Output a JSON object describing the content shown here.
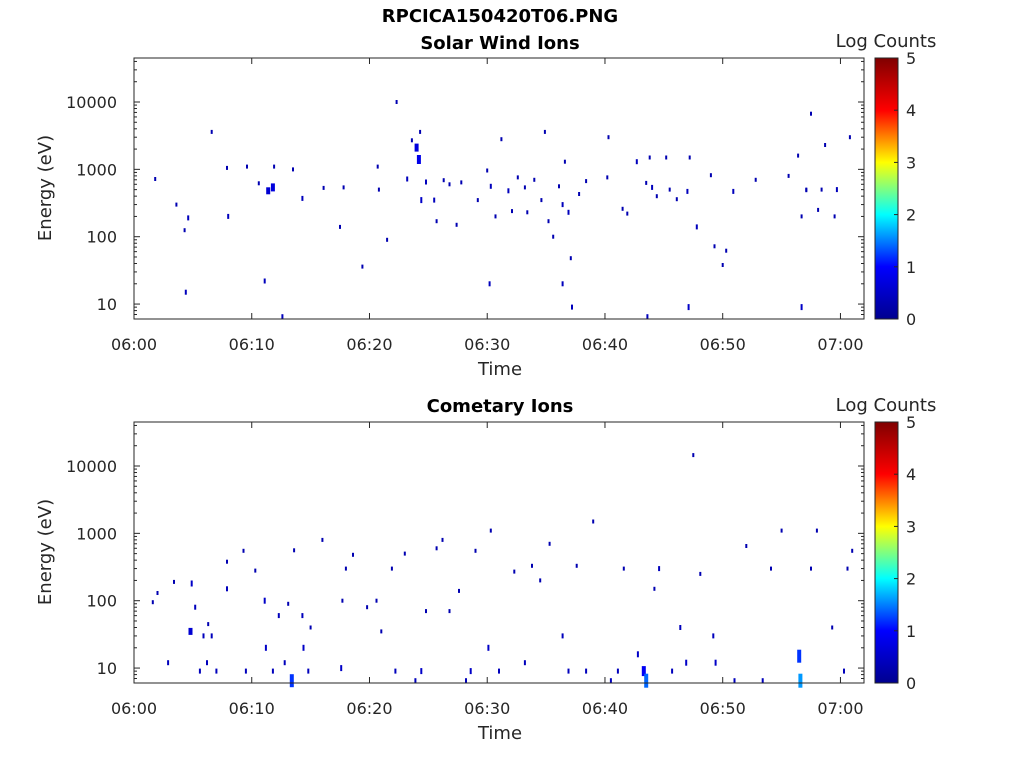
{
  "title": "RPCICA150420T06.PNG",
  "colormap": [
    "#00008f",
    "#0000ff",
    "#00ffff",
    "#ffff00",
    "#ff0000",
    "#800000"
  ],
  "chart_data": [
    {
      "type": "heatmap",
      "title": "Solar Wind Ions",
      "xlabel": "Time",
      "ylabel": "Energy (eV)",
      "colorbar_label": "Log Counts",
      "x_ticks": [
        "06:00",
        "06:10",
        "06:20",
        "06:30",
        "06:40",
        "06:50",
        "07:00"
      ],
      "xlim_minutes": [
        0,
        62
      ],
      "y_scale": "log",
      "y_ticks": [
        "10",
        "100",
        "1000",
        "10000"
      ],
      "ylim": [
        6,
        45000
      ],
      "clim": [
        0,
        5
      ],
      "colorbar_ticks": [
        "0",
        "1",
        "2",
        "3",
        "4",
        "5"
      ],
      "points": [
        {
          "t": 4.4,
          "e": 15,
          "c": 0.4
        },
        {
          "t": 11.1,
          "e": 22,
          "c": 0.4
        },
        {
          "t": 12.6,
          "e": 6.5,
          "c": 0.4
        },
        {
          "t": 30.2,
          "e": 20,
          "c": 0.4
        },
        {
          "t": 36.4,
          "e": 20,
          "c": 0.4
        },
        {
          "t": 37.2,
          "e": 9,
          "c": 0.4
        },
        {
          "t": 43.6,
          "e": 6.5,
          "c": 0.4
        },
        {
          "t": 47.1,
          "e": 9,
          "c": 0.5
        },
        {
          "t": 56.7,
          "e": 9,
          "c": 0.5
        },
        {
          "t": 1.8,
          "e": 720,
          "c": 0.3
        },
        {
          "t": 3.6,
          "e": 300,
          "c": 0.3
        },
        {
          "t": 4.6,
          "e": 190,
          "c": 0.4
        },
        {
          "t": 4.3,
          "e": 125,
          "c": 0.3
        },
        {
          "t": 6.6,
          "e": 3600,
          "c": 0.3
        },
        {
          "t": 7.9,
          "e": 1050,
          "c": 0.3
        },
        {
          "t": 8.0,
          "e": 200,
          "c": 0.4
        },
        {
          "t": 9.6,
          "e": 1100,
          "c": 0.3
        },
        {
          "t": 10.6,
          "e": 620,
          "c": 0.3
        },
        {
          "t": 11.4,
          "e": 480,
          "c": 0.6
        },
        {
          "t": 11.8,
          "e": 540,
          "c": 0.7
        },
        {
          "t": 11.9,
          "e": 1100,
          "c": 0.3
        },
        {
          "t": 13.5,
          "e": 1000,
          "c": 0.3
        },
        {
          "t": 14.3,
          "e": 370,
          "c": 0.4
        },
        {
          "t": 16.1,
          "e": 530,
          "c": 0.3
        },
        {
          "t": 17.5,
          "e": 140,
          "c": 0.3
        },
        {
          "t": 17.8,
          "e": 540,
          "c": 0.3
        },
        {
          "t": 19.4,
          "e": 36,
          "c": 0.3
        },
        {
          "t": 20.7,
          "e": 1100,
          "c": 0.3
        },
        {
          "t": 20.8,
          "e": 500,
          "c": 0.3
        },
        {
          "t": 21.5,
          "e": 90,
          "c": 0.3
        },
        {
          "t": 22.3,
          "e": 10000,
          "c": 0.3
        },
        {
          "t": 23.2,
          "e": 720,
          "c": 0.4
        },
        {
          "t": 23.6,
          "e": 2700,
          "c": 0.3
        },
        {
          "t": 24.0,
          "e": 2100,
          "c": 0.7
        },
        {
          "t": 24.2,
          "e": 1400,
          "c": 0.8
        },
        {
          "t": 24.3,
          "e": 3600,
          "c": 0.3
        },
        {
          "t": 24.4,
          "e": 350,
          "c": 0.5
        },
        {
          "t": 24.8,
          "e": 650,
          "c": 0.4
        },
        {
          "t": 25.5,
          "e": 350,
          "c": 0.4
        },
        {
          "t": 25.7,
          "e": 170,
          "c": 0.3
        },
        {
          "t": 26.3,
          "e": 690,
          "c": 0.3
        },
        {
          "t": 26.8,
          "e": 600,
          "c": 0.3
        },
        {
          "t": 27.4,
          "e": 150,
          "c": 0.3
        },
        {
          "t": 27.8,
          "e": 640,
          "c": 0.3
        },
        {
          "t": 29.2,
          "e": 350,
          "c": 0.3
        },
        {
          "t": 30.0,
          "e": 960,
          "c": 0.3
        },
        {
          "t": 30.3,
          "e": 560,
          "c": 0.4
        },
        {
          "t": 30.7,
          "e": 200,
          "c": 0.3
        },
        {
          "t": 31.2,
          "e": 2800,
          "c": 0.3
        },
        {
          "t": 31.8,
          "e": 480,
          "c": 0.4
        },
        {
          "t": 32.1,
          "e": 240,
          "c": 0.3
        },
        {
          "t": 32.6,
          "e": 760,
          "c": 0.3
        },
        {
          "t": 33.2,
          "e": 540,
          "c": 0.3
        },
        {
          "t": 33.4,
          "e": 230,
          "c": 0.3
        },
        {
          "t": 34.0,
          "e": 700,
          "c": 0.3
        },
        {
          "t": 34.6,
          "e": 350,
          "c": 0.3
        },
        {
          "t": 34.9,
          "e": 3600,
          "c": 0.3
        },
        {
          "t": 35.2,
          "e": 170,
          "c": 0.3
        },
        {
          "t": 35.6,
          "e": 100,
          "c": 0.3
        },
        {
          "t": 36.1,
          "e": 560,
          "c": 0.3
        },
        {
          "t": 36.4,
          "e": 300,
          "c": 0.4
        },
        {
          "t": 36.6,
          "e": 1300,
          "c": 0.3
        },
        {
          "t": 36.9,
          "e": 230,
          "c": 0.4
        },
        {
          "t": 37.1,
          "e": 48,
          "c": 0.3
        },
        {
          "t": 37.8,
          "e": 430,
          "c": 0.3
        },
        {
          "t": 38.4,
          "e": 670,
          "c": 0.3
        },
        {
          "t": 40.2,
          "e": 760,
          "c": 0.3
        },
        {
          "t": 40.3,
          "e": 3000,
          "c": 0.3
        },
        {
          "t": 41.5,
          "e": 260,
          "c": 0.3
        },
        {
          "t": 41.9,
          "e": 220,
          "c": 0.3
        },
        {
          "t": 42.7,
          "e": 1300,
          "c": 0.4
        },
        {
          "t": 43.5,
          "e": 630,
          "c": 0.3
        },
        {
          "t": 43.8,
          "e": 1500,
          "c": 0.3
        },
        {
          "t": 44.0,
          "e": 540,
          "c": 0.4
        },
        {
          "t": 44.4,
          "e": 400,
          "c": 0.3
        },
        {
          "t": 45.2,
          "e": 1500,
          "c": 0.3
        },
        {
          "t": 45.5,
          "e": 500,
          "c": 0.3
        },
        {
          "t": 46.1,
          "e": 360,
          "c": 0.3
        },
        {
          "t": 47.0,
          "e": 470,
          "c": 0.4
        },
        {
          "t": 47.2,
          "e": 1500,
          "c": 0.3
        },
        {
          "t": 47.8,
          "e": 140,
          "c": 0.4
        },
        {
          "t": 49.0,
          "e": 820,
          "c": 0.3
        },
        {
          "t": 49.3,
          "e": 72,
          "c": 0.3
        },
        {
          "t": 50.3,
          "e": 62,
          "c": 0.3
        },
        {
          "t": 50.0,
          "e": 38,
          "c": 0.3
        },
        {
          "t": 50.9,
          "e": 470,
          "c": 0.4
        },
        {
          "t": 52.8,
          "e": 700,
          "c": 0.3
        },
        {
          "t": 55.6,
          "e": 800,
          "c": 0.3
        },
        {
          "t": 56.4,
          "e": 1600,
          "c": 0.3
        },
        {
          "t": 56.7,
          "e": 200,
          "c": 0.3
        },
        {
          "t": 57.1,
          "e": 490,
          "c": 0.3
        },
        {
          "t": 57.5,
          "e": 6700,
          "c": 0.3
        },
        {
          "t": 58.1,
          "e": 250,
          "c": 0.3
        },
        {
          "t": 58.4,
          "e": 500,
          "c": 0.3
        },
        {
          "t": 58.7,
          "e": 2300,
          "c": 0.3
        },
        {
          "t": 59.5,
          "e": 200,
          "c": 0.3
        },
        {
          "t": 59.7,
          "e": 500,
          "c": 0.4
        },
        {
          "t": 60.8,
          "e": 3000,
          "c": 0.3
        },
        {
          "t": 57.1,
          "e": 500,
          "c": 0.3
        }
      ]
    },
    {
      "type": "heatmap",
      "title": "Cometary Ions",
      "xlabel": "Time",
      "ylabel": "Energy (eV)",
      "colorbar_label": "Log Counts",
      "x_ticks": [
        "06:00",
        "06:10",
        "06:20",
        "06:30",
        "06:40",
        "06:50",
        "07:00"
      ],
      "xlim_minutes": [
        0,
        62
      ],
      "y_scale": "log",
      "y_ticks": [
        "10",
        "100",
        "1000",
        "10000"
      ],
      "ylim": [
        6,
        45000
      ],
      "clim": [
        0,
        5
      ],
      "colorbar_ticks": [
        "0",
        "1",
        "2",
        "3",
        "4",
        "5"
      ],
      "points": [
        {
          "t": 1.6,
          "e": 95,
          "c": 0.3
        },
        {
          "t": 2.0,
          "e": 130,
          "c": 0.3
        },
        {
          "t": 2.9,
          "e": 12,
          "c": 0.4
        },
        {
          "t": 3.4,
          "e": 190,
          "c": 0.3
        },
        {
          "t": 4.8,
          "e": 35,
          "c": 0.6
        },
        {
          "t": 4.9,
          "e": 180,
          "c": 0.5
        },
        {
          "t": 5.2,
          "e": 80,
          "c": 0.4
        },
        {
          "t": 5.6,
          "e": 9,
          "c": 0.4
        },
        {
          "t": 5.9,
          "e": 30,
          "c": 0.4
        },
        {
          "t": 6.2,
          "e": 12,
          "c": 0.4
        },
        {
          "t": 6.3,
          "e": 45,
          "c": 0.3
        },
        {
          "t": 6.6,
          "e": 30,
          "c": 0.4
        },
        {
          "t": 7.0,
          "e": 9,
          "c": 0.4
        },
        {
          "t": 7.9,
          "e": 150,
          "c": 0.4
        },
        {
          "t": 7.9,
          "e": 380,
          "c": 0.3
        },
        {
          "t": 9.3,
          "e": 550,
          "c": 0.3
        },
        {
          "t": 9.5,
          "e": 9,
          "c": 0.4
        },
        {
          "t": 10.3,
          "e": 280,
          "c": 0.3
        },
        {
          "t": 11.1,
          "e": 100,
          "c": 0.5
        },
        {
          "t": 11.2,
          "e": 20,
          "c": 0.5
        },
        {
          "t": 11.8,
          "e": 9,
          "c": 0.4
        },
        {
          "t": 12.3,
          "e": 60,
          "c": 0.4
        },
        {
          "t": 12.8,
          "e": 12,
          "c": 0.4
        },
        {
          "t": 13.4,
          "e": 6.5,
          "c": 1.2
        },
        {
          "t": 13.1,
          "e": 90,
          "c": 0.3
        },
        {
          "t": 13.6,
          "e": 560,
          "c": 0.3
        },
        {
          "t": 14.3,
          "e": 60,
          "c": 0.4
        },
        {
          "t": 14.4,
          "e": 20,
          "c": 0.5
        },
        {
          "t": 14.8,
          "e": 9,
          "c": 0.4
        },
        {
          "t": 15.0,
          "e": 40,
          "c": 0.3
        },
        {
          "t": 16.0,
          "e": 800,
          "c": 0.3
        },
        {
          "t": 17.6,
          "e": 10,
          "c": 0.5
        },
        {
          "t": 17.7,
          "e": 100,
          "c": 0.3
        },
        {
          "t": 18.0,
          "e": 300,
          "c": 0.3
        },
        {
          "t": 18.6,
          "e": 480,
          "c": 0.3
        },
        {
          "t": 19.8,
          "e": 80,
          "c": 0.3
        },
        {
          "t": 20.6,
          "e": 100,
          "c": 0.3
        },
        {
          "t": 21.0,
          "e": 35,
          "c": 0.3
        },
        {
          "t": 21.9,
          "e": 300,
          "c": 0.3
        },
        {
          "t": 22.2,
          "e": 9,
          "c": 0.4
        },
        {
          "t": 23.0,
          "e": 500,
          "c": 0.3
        },
        {
          "t": 23.9,
          "e": 6.5,
          "c": 0.4
        },
        {
          "t": 24.4,
          "e": 9,
          "c": 0.5
        },
        {
          "t": 24.8,
          "e": 70,
          "c": 0.3
        },
        {
          "t": 25.7,
          "e": 600,
          "c": 0.3
        },
        {
          "t": 26.2,
          "e": 800,
          "c": 0.3
        },
        {
          "t": 26.8,
          "e": 70,
          "c": 0.3
        },
        {
          "t": 27.6,
          "e": 140,
          "c": 0.3
        },
        {
          "t": 28.2,
          "e": 6.5,
          "c": 0.4
        },
        {
          "t": 28.6,
          "e": 9,
          "c": 0.5
        },
        {
          "t": 29.0,
          "e": 550,
          "c": 0.3
        },
        {
          "t": 30.1,
          "e": 20,
          "c": 0.5
        },
        {
          "t": 30.3,
          "e": 1100,
          "c": 0.3
        },
        {
          "t": 31.0,
          "e": 9,
          "c": 0.4
        },
        {
          "t": 32.3,
          "e": 270,
          "c": 0.3
        },
        {
          "t": 33.2,
          "e": 12,
          "c": 0.4
        },
        {
          "t": 33.8,
          "e": 330,
          "c": 0.3
        },
        {
          "t": 34.5,
          "e": 200,
          "c": 0.3
        },
        {
          "t": 35.3,
          "e": 700,
          "c": 0.3
        },
        {
          "t": 36.4,
          "e": 30,
          "c": 0.4
        },
        {
          "t": 36.9,
          "e": 9,
          "c": 0.4
        },
        {
          "t": 37.6,
          "e": 330,
          "c": 0.3
        },
        {
          "t": 38.4,
          "e": 9,
          "c": 0.4
        },
        {
          "t": 39.0,
          "e": 1500,
          "c": 0.3
        },
        {
          "t": 40.5,
          "e": 6.5,
          "c": 0.4
        },
        {
          "t": 41.1,
          "e": 9,
          "c": 0.4
        },
        {
          "t": 41.6,
          "e": 300,
          "c": 0.3
        },
        {
          "t": 42.8,
          "e": 16,
          "c": 0.5
        },
        {
          "t": 43.3,
          "e": 9,
          "c": 0.9
        },
        {
          "t": 43.5,
          "e": 6.5,
          "c": 1.4
        },
        {
          "t": 44.2,
          "e": 150,
          "c": 0.3
        },
        {
          "t": 44.6,
          "e": 300,
          "c": 0.4
        },
        {
          "t": 45.7,
          "e": 9,
          "c": 0.4
        },
        {
          "t": 46.4,
          "e": 40,
          "c": 0.4
        },
        {
          "t": 46.9,
          "e": 12,
          "c": 0.5
        },
        {
          "t": 47.5,
          "e": 14500,
          "c": 0.3
        },
        {
          "t": 48.1,
          "e": 250,
          "c": 0.3
        },
        {
          "t": 49.2,
          "e": 30,
          "c": 0.4
        },
        {
          "t": 49.4,
          "e": 12,
          "c": 0.5
        },
        {
          "t": 51.0,
          "e": 6.5,
          "c": 0.4
        },
        {
          "t": 52.0,
          "e": 650,
          "c": 0.3
        },
        {
          "t": 53.4,
          "e": 6.5,
          "c": 0.4
        },
        {
          "t": 54.1,
          "e": 300,
          "c": 0.3
        },
        {
          "t": 55.0,
          "e": 1100,
          "c": 0.3
        },
        {
          "t": 56.5,
          "e": 15,
          "c": 1.2
        },
        {
          "t": 56.6,
          "e": 6.5,
          "c": 1.6
        },
        {
          "t": 57.5,
          "e": 300,
          "c": 0.3
        },
        {
          "t": 58.0,
          "e": 1100,
          "c": 0.3
        },
        {
          "t": 59.3,
          "e": 40,
          "c": 0.3
        },
        {
          "t": 60.3,
          "e": 9,
          "c": 0.4
        },
        {
          "t": 60.6,
          "e": 300,
          "c": 0.3
        },
        {
          "t": 61.0,
          "e": 550,
          "c": 0.3
        }
      ]
    }
  ]
}
